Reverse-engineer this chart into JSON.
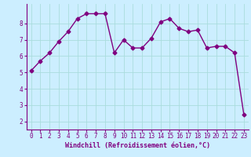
{
  "x": [
    0,
    1,
    2,
    3,
    4,
    5,
    6,
    7,
    8,
    9,
    10,
    11,
    12,
    13,
    14,
    15,
    16,
    17,
    18,
    19,
    20,
    21,
    22,
    23
  ],
  "y": [
    5.1,
    5.7,
    6.2,
    6.9,
    7.5,
    8.3,
    8.6,
    8.6,
    8.6,
    6.2,
    7.0,
    6.5,
    6.5,
    7.1,
    8.1,
    8.3,
    7.7,
    7.5,
    7.6,
    6.5,
    6.6,
    6.6,
    6.2,
    2.4
  ],
  "line_color": "#800080",
  "marker": "D",
  "marker_size": 2.5,
  "line_width": 1.0,
  "bg_color": "#cceeff",
  "grid_color": "#aadddd",
  "xlabel": "Windchill (Refroidissement éolien,°C)",
  "xlabel_color": "#800080",
  "tick_color": "#800080",
  "spine_color": "#800080",
  "xlim": [
    -0.5,
    23.5
  ],
  "ylim": [
    1.5,
    9.2
  ],
  "yticks": [
    2,
    3,
    4,
    5,
    6,
    7,
    8
  ],
  "xticks": [
    0,
    1,
    2,
    3,
    4,
    5,
    6,
    7,
    8,
    9,
    10,
    11,
    12,
    13,
    14,
    15,
    16,
    17,
    18,
    19,
    20,
    21,
    22,
    23
  ],
  "tick_fontsize": 5.5,
  "xlabel_fontsize": 6.0
}
